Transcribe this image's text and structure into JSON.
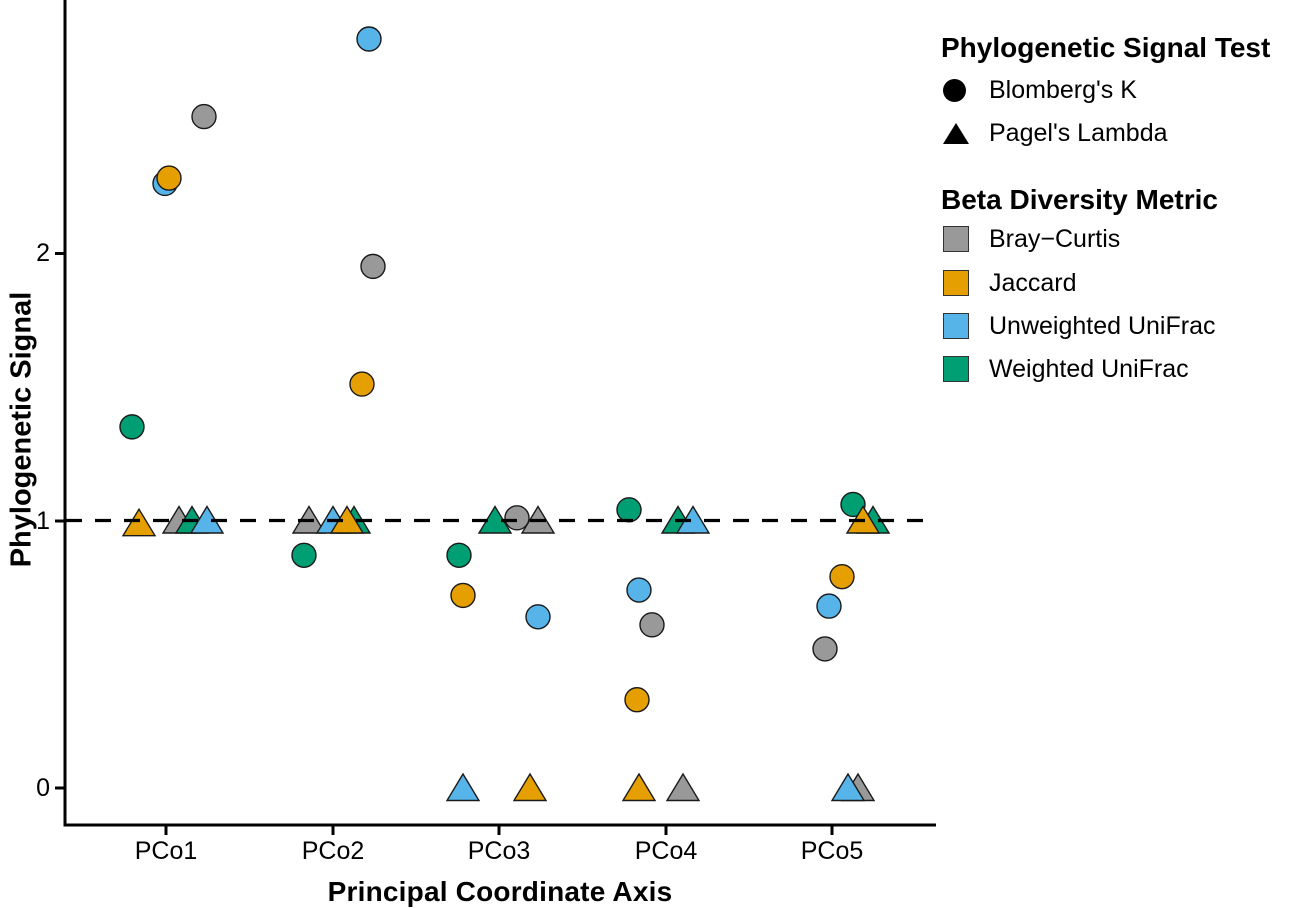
{
  "chart_data": {
    "type": "scatter",
    "title": "",
    "xlabel": "Principal Coordinate Axis",
    "ylabel": "Phylogenetic Signal",
    "categories": [
      "PCo1",
      "PCo2",
      "PCo3",
      "PCo4",
      "PCo5"
    ],
    "ytick_labels": [
      "0",
      "1",
      "2"
    ],
    "ytick_values": [
      0,
      1,
      2
    ],
    "ylim": [
      -0.14,
      2.95
    ],
    "grid": false,
    "reference_line_y": 1,
    "reference_line_style": "dashed",
    "legend_position": "right",
    "shape_legend": {
      "title": "Phylogenetic Signal Test",
      "items": [
        {
          "label": "Blomberg's K",
          "shape": "circle"
        },
        {
          "label": "Pagel's Lambda",
          "shape": "triangle"
        }
      ]
    },
    "color_legend": {
      "title": "Beta Diversity Metric",
      "items": [
        {
          "label": "Bray−Curtis",
          "color": "#999999"
        },
        {
          "label": "Jaccard",
          "color": "#E69F00"
        },
        {
          "label": "Unweighted UniFrac",
          "color": "#56B4E9"
        },
        {
          "label": "Weighted UniFrac",
          "color": "#009E73"
        }
      ]
    },
    "points": [
      {
        "axis": "PCo1",
        "metric": "Bray−Curtis",
        "test": "Blomberg's K",
        "value": 2.51,
        "dx": 38
      },
      {
        "axis": "PCo1",
        "metric": "Unweighted UniFrac",
        "test": "Blomberg's K",
        "value": 2.26,
        "dx": -1
      },
      {
        "axis": "PCo1",
        "metric": "Jaccard",
        "test": "Blomberg's K",
        "value": 2.28,
        "dx": 3
      },
      {
        "axis": "PCo1",
        "metric": "Weighted UniFrac",
        "test": "Blomberg's K",
        "value": 1.35,
        "dx": -34
      },
      {
        "axis": "PCo2",
        "metric": "Unweighted UniFrac",
        "test": "Blomberg's K",
        "value": 2.8,
        "dx": 36
      },
      {
        "axis": "PCo2",
        "metric": "Bray−Curtis",
        "test": "Blomberg's K",
        "value": 1.95,
        "dx": 40
      },
      {
        "axis": "PCo2",
        "metric": "Jaccard",
        "test": "Blomberg's K",
        "value": 1.51,
        "dx": 29
      },
      {
        "axis": "PCo2",
        "metric": "Weighted UniFrac",
        "test": "Blomberg's K",
        "value": 0.87,
        "dx": -29
      },
      {
        "axis": "PCo3",
        "metric": "Weighted UniFrac",
        "test": "Blomberg's K",
        "value": 0.87,
        "dx": -40
      },
      {
        "axis": "PCo3",
        "metric": "Jaccard",
        "test": "Blomberg's K",
        "value": 0.72,
        "dx": -36
      },
      {
        "axis": "PCo3",
        "metric": "Unweighted UniFrac",
        "test": "Blomberg's K",
        "value": 0.64,
        "dx": 39
      },
      {
        "axis": "PCo4",
        "metric": "Weighted UniFrac",
        "test": "Blomberg's K",
        "value": 1.04,
        "dx": -37
      },
      {
        "axis": "PCo4",
        "metric": "Unweighted UniFrac",
        "test": "Blomberg's K",
        "value": 0.74,
        "dx": -27
      },
      {
        "axis": "PCo4",
        "metric": "Bray−Curtis",
        "test": "Blomberg's K",
        "value": 0.61,
        "dx": -14
      },
      {
        "axis": "PCo4",
        "metric": "Jaccard",
        "test": "Blomberg's K",
        "value": 0.33,
        "dx": -29
      },
      {
        "axis": "PCo5",
        "metric": "Weighted UniFrac",
        "test": "Blomberg's K",
        "value": 1.06,
        "dx": 21
      },
      {
        "axis": "PCo5",
        "metric": "Jaccard",
        "test": "Blomberg's K",
        "value": 0.79,
        "dx": 10
      },
      {
        "axis": "PCo5",
        "metric": "Unweighted UniFrac",
        "test": "Blomberg's K",
        "value": 0.68,
        "dx": -3
      },
      {
        "axis": "PCo5",
        "metric": "Bray−Curtis",
        "test": "Blomberg's K",
        "value": 0.52,
        "dx": -7
      },
      {
        "axis": "PCo1",
        "metric": "Jaccard",
        "test": "Pagel's Lambda",
        "value": 0.99,
        "dx": -27
      },
      {
        "axis": "PCo1",
        "metric": "Bray−Curtis",
        "test": "Pagel's Lambda",
        "value": 1.0,
        "dx": 13
      },
      {
        "axis": "PCo1",
        "metric": "Weighted UniFrac",
        "test": "Pagel's Lambda",
        "value": 1.0,
        "dx": 26
      },
      {
        "axis": "PCo1",
        "metric": "Unweighted UniFrac",
        "test": "Pagel's Lambda",
        "value": 1.0,
        "dx": 41
      },
      {
        "axis": "PCo2",
        "metric": "Bray−Curtis",
        "test": "Pagel's Lambda",
        "value": 1.0,
        "dx": -24
      },
      {
        "axis": "PCo2",
        "metric": "Unweighted UniFrac",
        "test": "Pagel's Lambda",
        "value": 1.0,
        "dx": 0
      },
      {
        "axis": "PCo2",
        "metric": "Weighted UniFrac",
        "test": "Pagel's Lambda",
        "value": 1.0,
        "dx": 21
      },
      {
        "axis": "PCo2",
        "metric": "Jaccard",
        "test": "Pagel's Lambda",
        "value": 1.0,
        "dx": 14
      },
      {
        "axis": "PCo3",
        "metric": "Weighted UniFrac",
        "test": "Pagel's Lambda",
        "value": 1.0,
        "dx": -4
      },
      {
        "axis": "PCo3",
        "metric": "Bray−Curtis",
        "test": "Blomberg's K",
        "value": 1.01,
        "dx": 18
      },
      {
        "axis": "PCo3",
        "metric": "Bray−Curtis",
        "test": "Pagel's Lambda",
        "value": 1.0,
        "dx": 39
      },
      {
        "axis": "PCo3",
        "metric": "Unweighted UniFrac",
        "test": "Pagel's Lambda",
        "value": 0.0,
        "dx": -36
      },
      {
        "axis": "PCo3",
        "metric": "Jaccard",
        "test": "Pagel's Lambda",
        "value": 0.0,
        "dx": 31
      },
      {
        "axis": "PCo4",
        "metric": "Weighted UniFrac",
        "test": "Pagel's Lambda",
        "value": 1.0,
        "dx": 12
      },
      {
        "axis": "PCo4",
        "metric": "Unweighted UniFrac",
        "test": "Pagel's Lambda",
        "value": 1.0,
        "dx": 27
      },
      {
        "axis": "PCo4",
        "metric": "Jaccard",
        "test": "Pagel's Lambda",
        "value": 0.0,
        "dx": -27
      },
      {
        "axis": "PCo4",
        "metric": "Bray−Curtis",
        "test": "Pagel's Lambda",
        "value": 0.0,
        "dx": 17
      },
      {
        "axis": "PCo5",
        "metric": "Weighted UniFrac",
        "test": "Pagel's Lambda",
        "value": 1.0,
        "dx": 41
      },
      {
        "axis": "PCo5",
        "metric": "Jaccard",
        "test": "Pagel's Lambda",
        "value": 1.0,
        "dx": 31
      },
      {
        "axis": "PCo5",
        "metric": "Bray−Curtis",
        "test": "Pagel's Lambda",
        "value": 0.0,
        "dx": 26
      },
      {
        "axis": "PCo5",
        "metric": "Unweighted UniFrac",
        "test": "Pagel's Lambda",
        "value": 0.0,
        "dx": 16
      }
    ]
  }
}
